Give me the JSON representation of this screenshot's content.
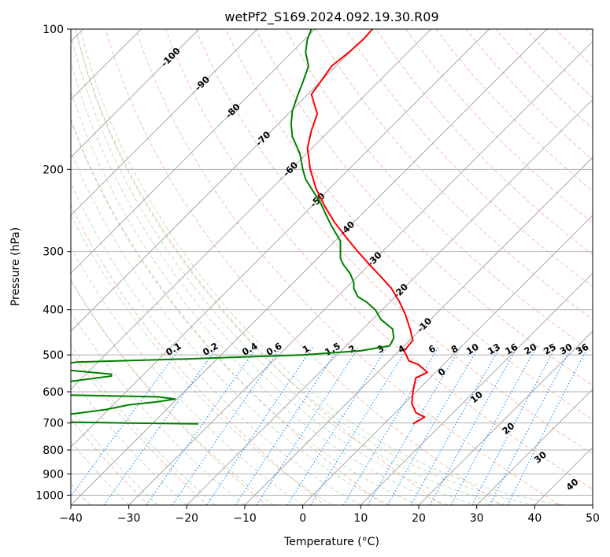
{
  "chart_data": {
    "type": "line",
    "title": "wetPf2_S169.2024.092.19.30.R09",
    "xlabel": "Temperature (°C)",
    "ylabel": "Pressure (hPa)",
    "xlim": [
      -40,
      50
    ],
    "ylim": [
      1050,
      100
    ],
    "yscale": "log",
    "grid": true,
    "x_ticks": [
      "−40",
      "−30",
      "−20",
      "−10",
      "0",
      "10",
      "20",
      "30",
      "40",
      "50"
    ],
    "x_tick_values": [
      -40,
      -30,
      -20,
      -10,
      0,
      10,
      20,
      30,
      40,
      50
    ],
    "y_ticks": [
      "100",
      "200",
      "300",
      "400",
      "500",
      "600",
      "700",
      "800",
      "900",
      "1000"
    ],
    "y_tick_values": [
      100,
      200,
      300,
      400,
      500,
      600,
      700,
      800,
      900,
      1000
    ],
    "series": [
      {
        "color": "#ff0000",
        "points": [
          [
            12,
            100
          ],
          [
            10.5,
            105
          ],
          [
            8,
            112
          ],
          [
            5,
            120
          ],
          [
            3,
            130
          ],
          [
            1.5,
            138
          ],
          [
            2,
            145
          ],
          [
            2.5,
            152
          ],
          [
            1.5,
            165
          ],
          [
            0.8,
            180
          ],
          [
            1.3,
            200
          ],
          [
            2.3,
            220
          ],
          [
            3.8,
            240
          ],
          [
            5.5,
            260
          ],
          [
            7.5,
            280
          ],
          [
            9.5,
            300
          ],
          [
            11.5,
            320
          ],
          [
            13.5,
            340
          ],
          [
            15.3,
            360
          ],
          [
            16.7,
            385
          ],
          [
            17.7,
            410
          ],
          [
            18.5,
            440
          ],
          [
            19,
            465
          ],
          [
            17.5,
            490
          ],
          [
            18.3,
            515
          ],
          [
            20,
            525
          ],
          [
            21.5,
            545
          ],
          [
            19.5,
            560
          ],
          [
            19,
            600
          ],
          [
            18.8,
            635
          ],
          [
            19.5,
            665
          ],
          [
            21,
            680
          ],
          [
            19,
            703
          ]
        ]
      },
      {
        "color": "#008000",
        "points": [
          [
            1.5,
            100
          ],
          [
            0.8,
            105
          ],
          [
            0.5,
            112
          ],
          [
            1,
            120
          ],
          [
            0,
            130
          ],
          [
            -1,
            140
          ],
          [
            -1.8,
            150
          ],
          [
            -2,
            160
          ],
          [
            -1.8,
            170
          ],
          [
            -0.5,
            185
          ],
          [
            0,
            200
          ],
          [
            0.5,
            210
          ],
          [
            2,
            225
          ],
          [
            3,
            235
          ],
          [
            4,
            250
          ],
          [
            5,
            265
          ],
          [
            6.5,
            285
          ],
          [
            6.5,
            300
          ],
          [
            6.5,
            310
          ],
          [
            7,
            320
          ],
          [
            8.2,
            335
          ],
          [
            8.8,
            350
          ],
          [
            8.8,
            360
          ],
          [
            9.5,
            375
          ],
          [
            11,
            385
          ],
          [
            12.5,
            400
          ],
          [
            13.5,
            420
          ],
          [
            15.5,
            440
          ],
          [
            15.7,
            460
          ],
          [
            15,
            478
          ],
          [
            10,
            490
          ],
          [
            0,
            500
          ],
          [
            -20,
            510
          ],
          [
            -39,
            518
          ],
          [
            -40,
            520
          ]
        ]
      },
      {
        "color": "#008000",
        "points": [
          [
            -40,
            540
          ],
          [
            -33,
            550
          ],
          [
            -33,
            555
          ],
          [
            -40,
            570
          ]
        ]
      },
      {
        "color": "#008000",
        "points": [
          [
            -40,
            610
          ],
          [
            -25,
            615
          ],
          [
            -22,
            622
          ],
          [
            -25,
            630
          ],
          [
            -30,
            640
          ],
          [
            -34,
            655
          ],
          [
            -38,
            665
          ],
          [
            -40,
            670
          ]
        ]
      },
      {
        "color": "#008000",
        "points": [
          [
            -40,
            697
          ],
          [
            -30,
            700
          ],
          [
            -18,
            703
          ]
        ]
      }
    ],
    "isotherm_labels": [
      "-100",
      "-90",
      "-80",
      "-70",
      "-60",
      "-50",
      "-40",
      "-30",
      "-20",
      "-10"
    ],
    "mixing_ratio_labels": [
      "0.1",
      "0.2",
      "0.4",
      "0.6",
      "1",
      "1.5",
      "2",
      "3",
      "4",
      "6",
      "8",
      "10",
      "13",
      "16",
      "20",
      "25",
      "30",
      "36"
    ],
    "dry_adiabat_labels": [
      "0",
      "10",
      "20",
      "30",
      "40"
    ],
    "colors": {
      "temperature": "#ff0000",
      "dewpoint": "#008000",
      "isotherm_label": "#1f77b4",
      "mixing_ratio": "#1e90ff",
      "dry_adiabat_label": "#d62728",
      "zero_label": "#808080"
    }
  }
}
